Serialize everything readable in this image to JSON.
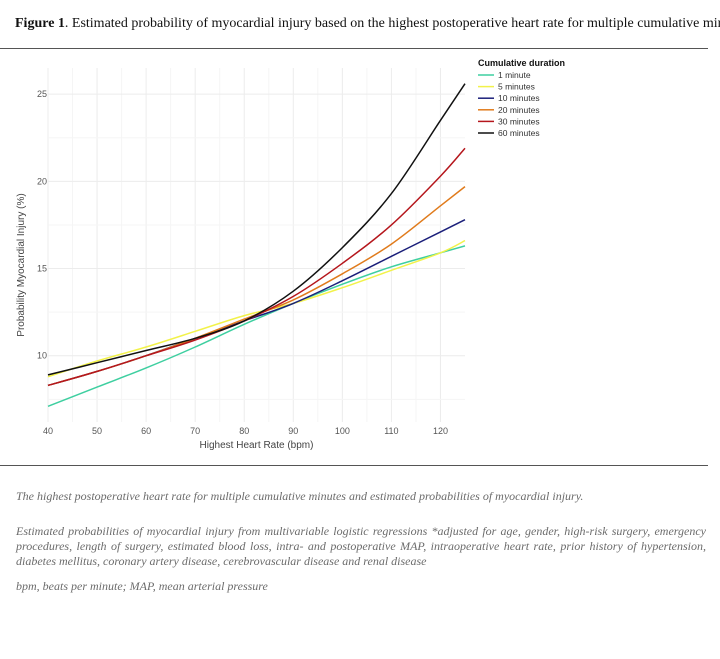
{
  "figure": {
    "label": "Figure 1",
    "title": ". Estimated probability of myocardial injury based on the highest postoperative heart rate for multiple cumulative minutes"
  },
  "captions": [
    "The highest postoperative heart rate for multiple cumulative minutes and estimated probabilities of myocardial injury.",
    "Estimated probabilities of myocardial injury from multivariable logistic regressions *adjusted for age, gender, high-risk surgery, emergency procedures, length of surgery, estimated blood loss, intra- and postoperative MAP, intraoperative heart rate, prior history of hypertension, diabetes mellitus, coronary artery disease, cerebrovascular disease and renal disease",
    "bpm, beats per minute; MAP, mean arterial pressure"
  ],
  "chart_data": {
    "type": "line",
    "xlabel": "Highest Heart Rate (bpm)",
    "ylabel": "Probability Myocardial Injury (%)",
    "xlim": [
      40,
      125
    ],
    "ylim": [
      6.2,
      26.5
    ],
    "xticks": [
      40,
      50,
      60,
      70,
      80,
      90,
      100,
      110,
      120
    ],
    "yticks": [
      10,
      15,
      20,
      25
    ],
    "grid": true,
    "legend": {
      "title": "Cumulative duration",
      "placement": "top-right"
    },
    "x": [
      40,
      50,
      60,
      70,
      80,
      90,
      100,
      110,
      120,
      125
    ],
    "series": [
      {
        "name": "1 minute",
        "color": "#3ecfa0",
        "values": [
          7.1,
          8.2,
          9.3,
          10.5,
          11.8,
          13.0,
          14.1,
          15.1,
          15.9,
          16.3
        ]
      },
      {
        "name": "5 minutes",
        "color": "#f2f24a",
        "values": [
          8.8,
          9.7,
          10.5,
          11.4,
          12.3,
          13.0,
          13.9,
          14.9,
          15.9,
          16.6
        ]
      },
      {
        "name": "10 minutes",
        "color": "#1b1f7a",
        "values": [
          8.3,
          9.1,
          10.0,
          11.0,
          12.0,
          13.0,
          14.3,
          15.7,
          17.1,
          17.8
        ]
      },
      {
        "name": "20 minutes",
        "color": "#e07b1c",
        "values": [
          8.3,
          9.1,
          10.0,
          11.0,
          12.1,
          13.2,
          14.7,
          16.4,
          18.6,
          19.7
        ]
      },
      {
        "name": "30 minutes",
        "color": "#b5161c",
        "values": [
          8.3,
          9.1,
          10.0,
          10.9,
          12.0,
          13.4,
          15.3,
          17.5,
          20.3,
          21.9
        ]
      },
      {
        "name": "60 minutes",
        "color": "#111111",
        "values": [
          8.9,
          9.6,
          10.3,
          11.0,
          12.0,
          13.7,
          16.2,
          19.3,
          23.5,
          25.6
        ]
      }
    ]
  }
}
